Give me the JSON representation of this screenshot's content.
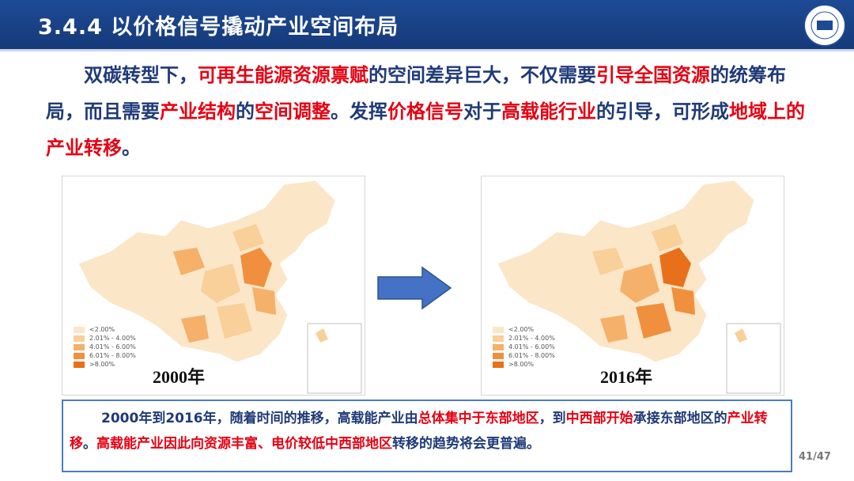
{
  "header": {
    "title": "3.4.4 以价格信号撬动产业空间布局"
  },
  "paragraph": {
    "segments": [
      {
        "text": "双碳转型下，",
        "emphasis": false
      },
      {
        "text": "可再生能源资源禀赋",
        "emphasis": true
      },
      {
        "text": "的空间差异巨大，不仅需要",
        "emphasis": false
      },
      {
        "text": "引导全国资源",
        "emphasis": true
      },
      {
        "text": "的统筹布局，而且需要",
        "emphasis": false
      },
      {
        "text": "产业结构",
        "emphasis": true
      },
      {
        "text": "的",
        "emphasis": false
      },
      {
        "text": "空间调整",
        "emphasis": true
      },
      {
        "text": "。发挥",
        "emphasis": false
      },
      {
        "text": "价格信号",
        "emphasis": true
      },
      {
        "text": "对于",
        "emphasis": false
      },
      {
        "text": "高载能行业",
        "emphasis": true
      },
      {
        "text": "的引导，可形成",
        "emphasis": false
      },
      {
        "text": "地域上的产业转移",
        "emphasis": true
      },
      {
        "text": "。",
        "emphasis": false
      }
    ]
  },
  "maps": [
    {
      "year": "2000年",
      "legend": [
        "<2.00%",
        "2.01% - 4.00%",
        "4.01% - 6.00%",
        "6.01% - 8.00%",
        ">8.00%"
      ]
    },
    {
      "year": "2016年",
      "legend": [
        "<2.00%",
        "2.01% - 4.00%",
        "4.01% - 6.00%",
        "6.01% - 8.00%",
        ">8.00%"
      ]
    }
  ],
  "note": {
    "segments": [
      {
        "text": "2000年到2016年，随着时间的推移，高载能产业由",
        "emphasis": false
      },
      {
        "text": "总体集中于东部地区",
        "emphasis": true
      },
      {
        "text": "，到",
        "emphasis": false
      },
      {
        "text": "中西部开始",
        "emphasis": true
      },
      {
        "text": "承接东部地区的",
        "emphasis": false
      },
      {
        "text": "产业转移",
        "emphasis": true
      },
      {
        "text": "。",
        "emphasis": false
      },
      {
        "text": "高载能产业因此向资源丰富、电价较低中西部地区",
        "emphasis": true
      },
      {
        "text": "转移的趋势将会更普遍。",
        "emphasis": false
      }
    ]
  },
  "page_number": "41/47"
}
